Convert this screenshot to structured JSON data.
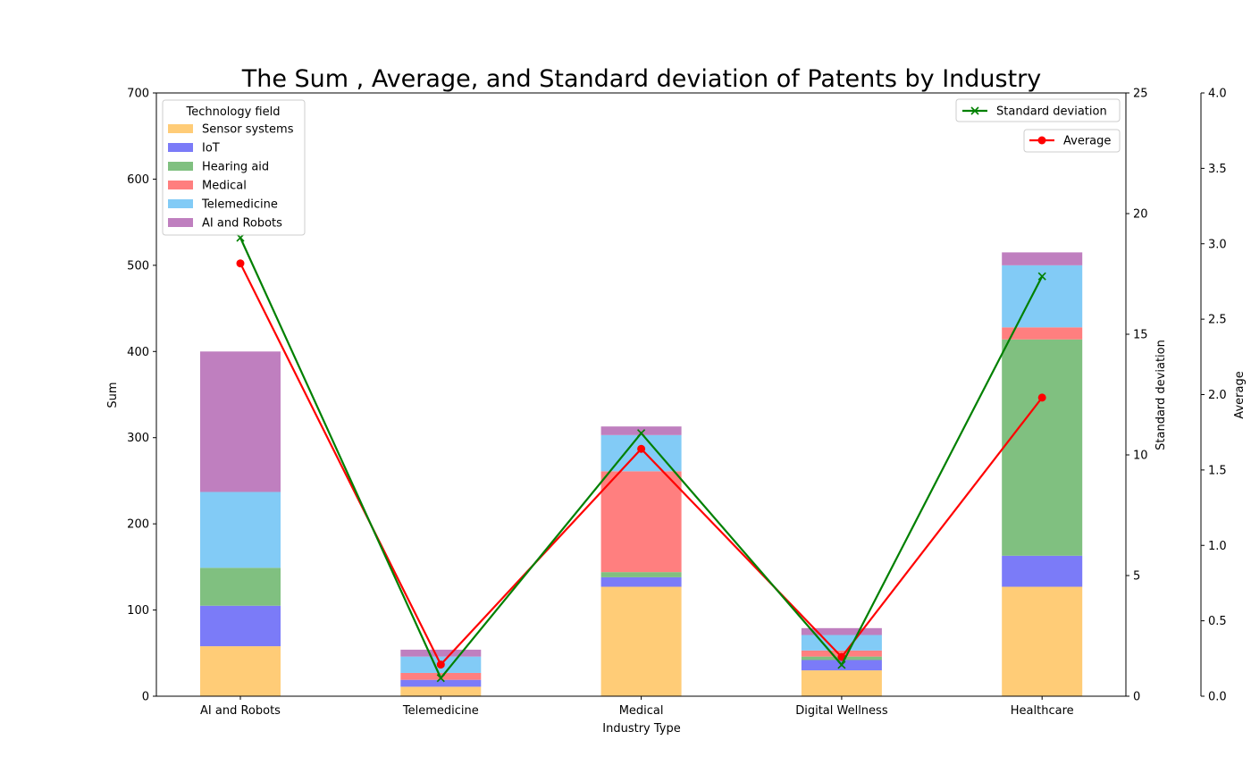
{
  "chart_data": {
    "type": "bar",
    "title": "The Sum , Average, and Standard deviation of Patents by Industry",
    "xlabel": "Industry Type",
    "ylabel": "Sum",
    "categories": [
      "AI and Robots",
      "Telemedicine",
      "Medical",
      "Digital Wellness",
      "Healthcare"
    ],
    "ylim": [
      0,
      700
    ],
    "yticks": [
      "0",
      "100",
      "200",
      "300",
      "400",
      "500",
      "600",
      "700"
    ],
    "legend_title": "Technology field",
    "legend_position": "upper left",
    "series": [
      {
        "name": "Sensor systems",
        "color": "#ffcc77",
        "values": [
          58,
          11,
          127,
          30,
          127
        ]
      },
      {
        "name": "IoT",
        "color": "#7b7bf8",
        "values": [
          47,
          8,
          11,
          12,
          36
        ]
      },
      {
        "name": "Hearing aid",
        "color": "#80c080",
        "values": [
          44,
          0,
          6,
          4,
          251
        ]
      },
      {
        "name": "Medical",
        "color": "#ff7f7f",
        "values": [
          0,
          8,
          117,
          7,
          14
        ]
      },
      {
        "name": "Telemedicine",
        "color": "#82cbf6",
        "values": [
          88,
          19,
          42,
          18,
          72
        ]
      },
      {
        "name": "AI and Robots",
        "color": "#bf7fbf",
        "values": [
          163,
          8,
          10,
          8,
          15
        ]
      }
    ],
    "std_axis": {
      "label": "Standard deviation",
      "ylim": [
        0,
        25
      ],
      "yticks": [
        "0",
        "5",
        "10",
        "15",
        "20",
        "25"
      ],
      "series_name": "Standard deviation",
      "color": "#008000",
      "marker": "x",
      "values": [
        19.0,
        0.75,
        10.9,
        1.3,
        17.4
      ]
    },
    "avg_axis": {
      "label": "Average",
      "ylim": [
        0,
        4.0
      ],
      "yticks": [
        "0.0",
        "0.5",
        "1.0",
        "1.5",
        "2.0",
        "2.5",
        "3.0",
        "3.5",
        "4.0"
      ],
      "series_name": "Average",
      "color": "#ff0000",
      "marker": "o",
      "values": [
        2.87,
        0.21,
        1.64,
        0.26,
        1.98
      ]
    }
  }
}
